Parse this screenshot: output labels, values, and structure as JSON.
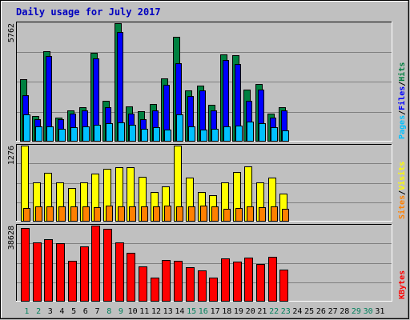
{
  "chart_data": {
    "type": "bar",
    "title": "Daily usage for July 2017",
    "days": [
      "1",
      "2",
      "3",
      "4",
      "5",
      "6",
      "7",
      "8",
      "9",
      "10",
      "11",
      "12",
      "13",
      "14",
      "15",
      "16",
      "17",
      "18",
      "19",
      "20",
      "21",
      "22",
      "23",
      "24",
      "25",
      "26",
      "27",
      "28",
      "29",
      "30",
      "31"
    ],
    "weekend_days": [
      "1",
      "2",
      "8",
      "9",
      "15",
      "16",
      "22",
      "23",
      "29",
      "30"
    ],
    "panels": [
      {
        "id": "hits-files-pages",
        "max_label": "5762",
        "ylim": [
          0,
          5762
        ],
        "legend": [
          "Pages",
          "/",
          "Files",
          "/",
          "Hits"
        ],
        "legend_colors": [
          "#00C0FF",
          "#000000",
          "#0000FF",
          "#000000",
          "#008040"
        ],
        "series": [
          {
            "name": "Hits",
            "color": "#008040",
            "values": [
              3000,
              1200,
              4400,
              1150,
              1500,
              1650,
              4300,
              1950,
              5762,
              1700,
              1450,
              1800,
              3050,
              5100,
              2450,
              2700,
              1750,
              4250,
              4200,
              2500,
              2800,
              1350,
              1650
            ]
          },
          {
            "name": "Files",
            "color": "#0000FF",
            "values": [
              2250,
              1050,
              4150,
              1050,
              1350,
              1500,
              4050,
              1650,
              5350,
              1350,
              1050,
              1500,
              2750,
              3800,
              2200,
              2450,
              1500,
              3950,
              3750,
              1950,
              2500,
              1150,
              1500
            ]
          },
          {
            "name": "Pages",
            "color": "#00C0FF",
            "values": [
              1300,
              700,
              700,
              600,
              650,
              700,
              800,
              850,
              900,
              800,
              600,
              650,
              550,
              1300,
              700,
              550,
              600,
              700,
              750,
              950,
              850,
              650,
              500
            ]
          }
        ]
      },
      {
        "id": "sites-visits",
        "max_label": "1276",
        "ylim": [
          0,
          1276
        ],
        "legend": [
          "Sites",
          "/",
          "Visits"
        ],
        "legend_colors": [
          "#FF8000",
          "#000000",
          "#FFFF00"
        ],
        "series": [
          {
            "name": "Visits",
            "color": "#FFFF00",
            "values": [
              1276,
              650,
              820,
              650,
              560,
              650,
              800,
              880,
              910,
              910,
              750,
              490,
              590,
              1276,
              730,
              490,
              440,
              650,
              830,
              920,
              650,
              730,
              460
            ]
          },
          {
            "name": "Sites",
            "color": "#FF8000",
            "values": [
              220,
              240,
              240,
              240,
              240,
              240,
              230,
              260,
              250,
              250,
              240,
              240,
              260,
              240,
              240,
              260,
              250,
              210,
              220,
              240,
              230,
              250,
              200
            ]
          }
        ]
      },
      {
        "id": "kbytes",
        "max_label": "38628",
        "ylim": [
          0,
          38628
        ],
        "legend": [
          "KBytes"
        ],
        "legend_colors": [
          "#FF0000"
        ],
        "series": [
          {
            "name": "KBytes",
            "color": "#FF0000",
            "values": [
              37200,
              29900,
              31600,
              29500,
              20700,
              27800,
              38628,
              37000,
              30100,
              24700,
              17600,
              11900,
              20800,
              20700,
              17200,
              15500,
              11800,
              21800,
              20100,
              22200,
              18700,
              22400,
              15900
            ]
          }
        ]
      }
    ]
  }
}
